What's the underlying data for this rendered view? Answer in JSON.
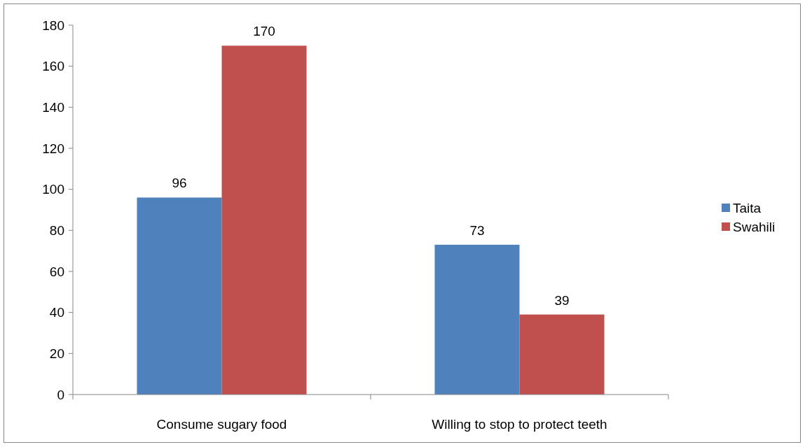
{
  "chart_data": {
    "type": "bar",
    "categories": [
      "Consume sugary food",
      "Willing to stop to protect teeth"
    ],
    "series": [
      {
        "name": "Taita",
        "color": "#4f81bd",
        "values": [
          96,
          73
        ]
      },
      {
        "name": "Swahili",
        "color": "#c0504d",
        "values": [
          170,
          39
        ]
      }
    ],
    "ylim": [
      0,
      180
    ],
    "yticks": [
      0,
      20,
      40,
      60,
      80,
      100,
      120,
      140,
      160,
      180
    ],
    "grid": false,
    "legend": "right",
    "data_labels": true
  }
}
